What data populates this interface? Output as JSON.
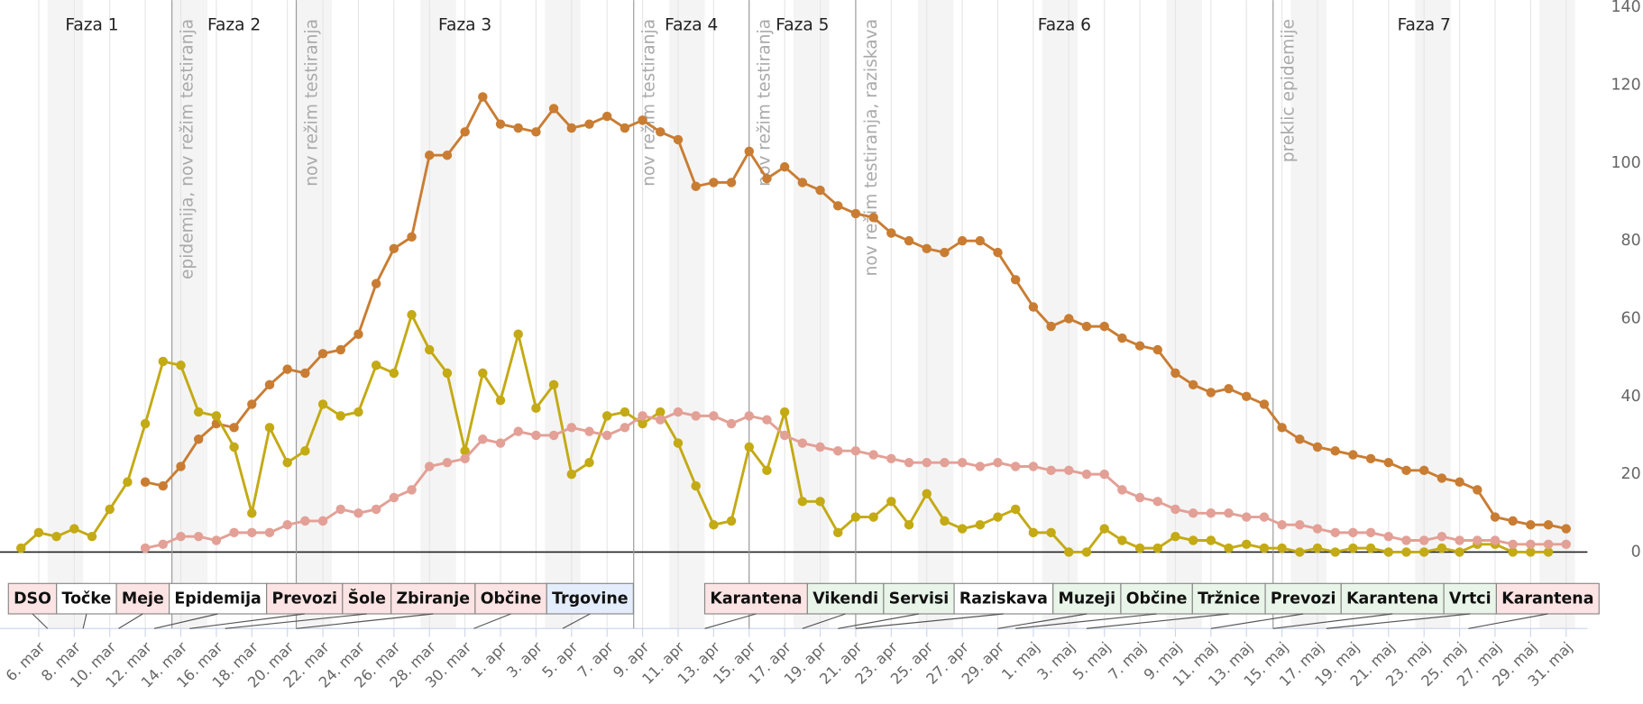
{
  "chart_data": {
    "type": "line",
    "categories": [
      null,
      "6. mar",
      null,
      "8. mar",
      null,
      "10. mar",
      null,
      "12. mar",
      null,
      "14. mar",
      null,
      "16. mar",
      null,
      "18. mar",
      null,
      "20. mar",
      null,
      "22. mar",
      null,
      "24. mar",
      null,
      "26. mar",
      null,
      "28. mar",
      null,
      "30. mar",
      null,
      "1. apr",
      null,
      "3. apr",
      null,
      "5. apr",
      null,
      "7. apr",
      null,
      "9. apr",
      null,
      "11. apr",
      null,
      "13. apr",
      null,
      "15. apr",
      null,
      "17. apr",
      null,
      "19. apr",
      null,
      "21. apr",
      null,
      "23. apr",
      null,
      "25. apr",
      null,
      "27. apr",
      null,
      "29. apr",
      null,
      "1. maj",
      null,
      "3. maj",
      null,
      "5. maj",
      null,
      "7. maj",
      null,
      "9. maj",
      null,
      "11. maj",
      null,
      "13. maj",
      null,
      "15. maj",
      null,
      "17. maj",
      null,
      "19. maj",
      null,
      "21. maj",
      null,
      "23. maj",
      null,
      "25. maj",
      null,
      "27. maj",
      null,
      "29. maj",
      null,
      "31. maj"
    ],
    "series": [
      {
        "color": "#c97d33",
        "values": [
          null,
          null,
          null,
          null,
          null,
          null,
          null,
          18,
          17,
          22,
          29,
          33,
          32,
          38,
          43,
          47,
          46,
          51,
          52,
          56,
          69,
          78,
          81,
          102,
          102,
          108,
          117,
          110,
          109,
          108,
          114,
          109,
          110,
          112,
          109,
          111,
          108,
          106,
          94,
          95,
          95,
          103,
          96,
          99,
          95,
          93,
          89,
          87,
          86,
          82,
          80,
          78,
          77,
          80,
          80,
          77,
          70,
          63,
          58,
          60,
          58,
          58,
          55,
          53,
          52,
          46,
          43,
          41,
          42,
          40,
          38,
          32,
          29,
          27,
          26,
          25,
          24,
          23,
          21,
          21,
          19,
          18,
          16,
          9,
          8,
          7,
          7,
          6
        ]
      },
      {
        "color": "#c4aa14",
        "values": [
          1,
          5,
          4,
          6,
          4,
          11,
          18,
          33,
          49,
          48,
          36,
          35,
          27,
          10,
          32,
          23,
          26,
          38,
          35,
          36,
          48,
          46,
          61,
          52,
          46,
          26,
          46,
          39,
          56,
          37,
          43,
          20,
          23,
          35,
          36,
          33,
          36,
          28,
          17,
          7,
          8,
          27,
          21,
          36,
          13,
          13,
          5,
          9,
          9,
          13,
          7,
          15,
          8,
          6,
          7,
          9,
          11,
          5,
          5,
          0,
          0,
          6,
          3,
          1,
          1,
          4,
          3,
          3,
          1,
          2,
          1,
          1,
          0,
          1,
          0,
          1,
          1,
          0,
          0,
          0,
          1,
          0,
          2,
          2,
          0,
          0,
          0,
          null
        ]
      },
      {
        "color": "#e3a096",
        "values": [
          null,
          null,
          null,
          null,
          null,
          null,
          null,
          1,
          2,
          4,
          4,
          3,
          5,
          5,
          5,
          7,
          8,
          8,
          11,
          10,
          11,
          14,
          16,
          22,
          23,
          24,
          29,
          28,
          31,
          30,
          30,
          32,
          31,
          30,
          32,
          35,
          34,
          36,
          35,
          35,
          33,
          35,
          34,
          30,
          28,
          27,
          26,
          26,
          25,
          24,
          23,
          23,
          23,
          23,
          22,
          23,
          22,
          22,
          21,
          21,
          20,
          20,
          16,
          14,
          13,
          11,
          10,
          10,
          10,
          9,
          9,
          7,
          7,
          6,
          5,
          5,
          5,
          4,
          3,
          3,
          4,
          3,
          3,
          3,
          2,
          2,
          2,
          2
        ]
      }
    ],
    "ylim": [
      0,
      140
    ],
    "yticks": [
      0,
      20,
      40,
      60,
      80,
      100,
      120,
      140
    ],
    "grid": true,
    "annotations": [
      {
        "x": 8.5,
        "text": "epidemija, nov režim testiranja"
      },
      {
        "x": 15.5,
        "text": "nov režim testiranja"
      },
      {
        "x": 34.5,
        "text": "nov režim testiranja"
      },
      {
        "x": 41,
        "text": "nov režim testiranja"
      },
      {
        "x": 47,
        "text": "nov režim testiranja, raziskava"
      },
      {
        "x": 70.5,
        "text": "preklic epidemije"
      }
    ],
    "phases": [
      "Faza 1",
      "Faza 2",
      "Faza 3",
      "Faza 4",
      "Faza 5",
      "Faza 6",
      "Faza 7"
    ],
    "measures": [
      {
        "label": "DSO",
        "color": "#fde4e4",
        "x": 1.5
      },
      {
        "label": "Točke",
        "color": "#ffffff",
        "x": 3.5
      },
      {
        "label": "Meje",
        "color": "#fde4e4",
        "x": 5.5
      },
      {
        "label": "Epidemija",
        "color": "#ffffff",
        "x": 7.5
      },
      {
        "label": "Prevozi",
        "color": "#fde4e4",
        "x": 9.5
      },
      {
        "label": "Šole",
        "color": "#fde4e4",
        "x": 11.5
      },
      {
        "label": "Zbiranje",
        "color": "#fde4e4",
        "x": 15.5
      },
      {
        "label": "Občine",
        "color": "#fde4e4",
        "x": 25.5
      },
      {
        "label": "Trgovine",
        "color": "#e4edfb",
        "x": 30.5
      },
      {
        "label": "Karantena",
        "color": "#fde4e4",
        "x": 38.5
      },
      {
        "label": "Vikendi",
        "color": "#e8f5e8",
        "x": 44
      },
      {
        "label": "Servisi",
        "color": "#e8f5e8",
        "x": 46
      },
      {
        "label": "Raziskava",
        "color": "#ffffff",
        "x": 47
      },
      {
        "label": "Muzeji",
        "color": "#e8f5e8",
        "x": 55
      },
      {
        "label": "Občine",
        "color": "#e8f5e8",
        "x": 56
      },
      {
        "label": "Tržnice",
        "color": "#e8f5e8",
        "x": 60
      },
      {
        "label": "Prevozi",
        "color": "#e8f5e8",
        "x": 67
      },
      {
        "label": "Karantena",
        "color": "#e8f5e8",
        "x": 70.5
      },
      {
        "label": "Vrtci",
        "color": "#e8f5e8",
        "x": 73.5
      },
      {
        "label": "Karantena",
        "color": "#fde4e4",
        "x": 81.5
      }
    ]
  }
}
